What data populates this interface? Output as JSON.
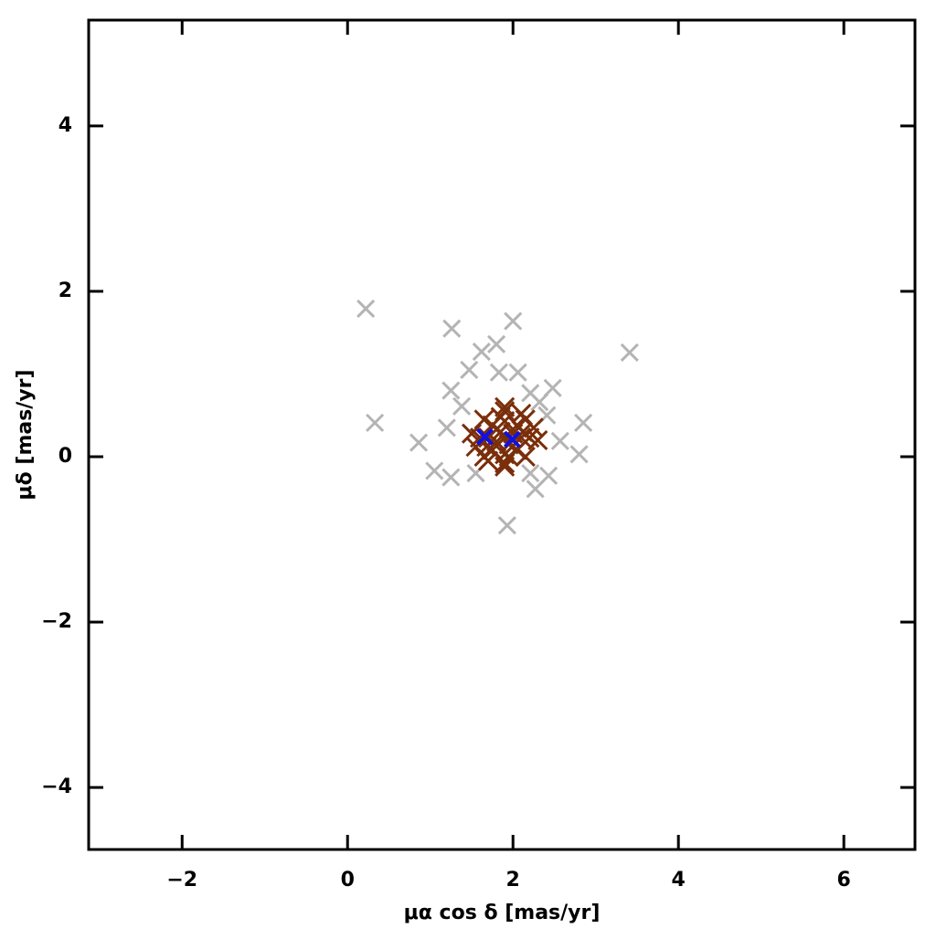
{
  "chart_data": {
    "type": "scatter",
    "xlabel": "μα cos δ [mas/yr]",
    "ylabel": "μδ [mas/yr]",
    "xlim": [
      -3.13,
      6.86
    ],
    "ylim": [
      -4.75,
      5.28
    ],
    "xticks": [
      {
        "value": -2,
        "label": "−2"
      },
      0,
      2,
      4,
      6
    ],
    "yticks": [
      {
        "value": -4,
        "label": "−4"
      },
      {
        "value": -2,
        "label": "−2"
      },
      0,
      2,
      4
    ],
    "series": [
      {
        "color": "#b4b4b4",
        "x": [
          0.22,
          1.26,
          2.0,
          1.62,
          1.8,
          3.41,
          1.47,
          1.83,
          2.06,
          2.48,
          1.25,
          2.21,
          0.33,
          2.85,
          1.2,
          0.86,
          2.57,
          2.8,
          1.05,
          1.25,
          1.55,
          2.21,
          2.43,
          2.27,
          1.93,
          2.41,
          1.38,
          2.32
        ],
        "values": [
          1.79,
          1.55,
          1.64,
          1.27,
          1.36,
          1.26,
          1.05,
          1.02,
          1.02,
          0.83,
          0.8,
          0.77,
          0.41,
          0.41,
          0.35,
          0.17,
          0.19,
          0.03,
          -0.17,
          -0.25,
          -0.2,
          -0.2,
          -0.23,
          -0.39,
          -0.83,
          0.5,
          0.61,
          0.66
        ]
      },
      {
        "color": "#7a2e0a",
        "x": [
          1.9,
          2.1,
          1.7,
          1.9,
          1.9,
          2.05,
          1.75,
          2.05,
          1.75,
          2.2,
          1.6,
          1.9,
          1.9,
          2.15,
          1.65,
          2.15,
          1.65,
          2.25,
          1.55,
          1.85,
          1.95,
          2.0,
          1.8,
          2.3,
          1.5,
          1.9,
          1.9,
          2.1,
          1.7,
          1.95,
          1.85,
          2.12,
          1.68
        ],
        "values": [
          0.23,
          0.23,
          0.23,
          0.43,
          0.03,
          0.38,
          0.38,
          0.08,
          0.08,
          0.23,
          0.23,
          0.55,
          -0.08,
          0.45,
          0.45,
          0.0,
          0.0,
          0.35,
          0.12,
          0.3,
          0.15,
          0.28,
          0.18,
          0.2,
          0.28,
          0.6,
          -0.12,
          0.52,
          -0.05,
          0.0,
          0.48,
          0.3,
          0.12
        ]
      },
      {
        "color": "#1010e0",
        "x": [
          1.66,
          1.99
        ],
        "values": [
          0.24,
          0.21
        ]
      }
    ]
  }
}
